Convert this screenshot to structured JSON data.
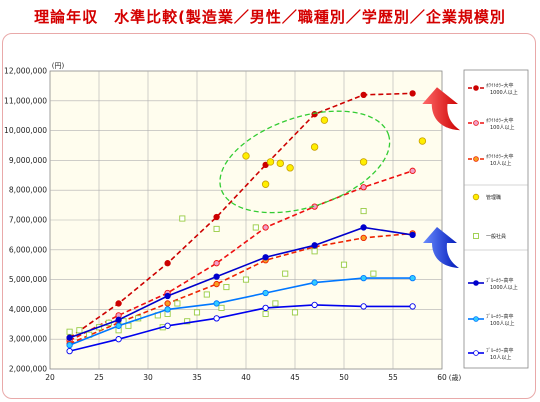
{
  "title": "理論年収　水準比較(製造業／男性／職種別／学歴別／企業規模別",
  "chart_data": {
    "type": "line",
    "y_unit": "(円)",
    "x_unit": "(歳)",
    "xlim": [
      20,
      60
    ],
    "ylim": [
      2000000,
      12000000
    ],
    "x_ticks": [
      "20",
      "25",
      "30",
      "35",
      "40",
      "45",
      "50",
      "55",
      "60"
    ],
    "y_ticks": [
      "2,000,000",
      "3,000,000",
      "4,000,000",
      "5,000,000",
      "6,000,000",
      "7,000,000",
      "8,000,000",
      "9,000,000",
      "10,000,000",
      "11,000,000",
      "12,000,000"
    ],
    "x_tick_values": [
      20,
      25,
      30,
      35,
      40,
      45,
      50,
      55,
      60
    ],
    "y_tick_values": [
      2000000,
      3000000,
      4000000,
      5000000,
      6000000,
      7000000,
      8000000,
      9000000,
      10000000,
      11000000,
      12000000
    ],
    "series": [
      {
        "name": "ﾎﾜｲﾄｶﾗｰ大卒 1000人以上",
        "color": "#cc0000",
        "marker_fill": "#cc0000",
        "dash": true,
        "x": [
          22,
          27,
          32,
          37,
          42,
          47,
          52,
          57
        ],
        "y": [
          3050000,
          4200000,
          5550000,
          7100000,
          8850000,
          10550000,
          11200000,
          11250000
        ]
      },
      {
        "name": "ﾎﾜｲﾄｶﾗｰ大卒 100人以上",
        "color": "#ee1111",
        "marker_fill": "#f0a0c8",
        "dash": true,
        "x": [
          22,
          27,
          32,
          37,
          42,
          47,
          52,
          57
        ],
        "y": [
          2950000,
          3800000,
          4550000,
          5550000,
          6750000,
          7450000,
          8100000,
          8650000
        ]
      },
      {
        "name": "ﾎﾜｲﾄｶﾗｰ大卒 10人以上",
        "color": "#ee2200",
        "marker_fill": "#f7a020",
        "dash": true,
        "x": [
          22,
          27,
          32,
          37,
          42,
          47,
          52,
          57
        ],
        "y": [
          2850000,
          3550000,
          4200000,
          4850000,
          5650000,
          6100000,
          6400000,
          6550000
        ]
      },
      {
        "name": "管理職",
        "marker": "circle",
        "marker_fill": "#ffee00",
        "marker_stroke": "#c8a000",
        "x": [
          40,
          42,
          42.5,
          43.5,
          44.5,
          47,
          48,
          52,
          58
        ],
        "y": [
          9150000,
          8200000,
          8950000,
          8900000,
          8750000,
          9450000,
          10350000,
          8950000,
          9650000
        ]
      },
      {
        "name": "一般社員",
        "marker": "square",
        "marker_fill": "#ffffff",
        "marker_stroke": "#99cc44",
        "x": [
          22,
          23,
          24,
          25,
          26,
          27,
          27.5,
          28,
          29,
          31,
          31.5,
          32,
          33,
          33.5,
          34,
          35,
          36,
          37,
          37.5,
          38,
          40,
          41,
          42,
          43,
          44,
          45,
          47,
          50,
          52,
          53
        ],
        "y": [
          3250000,
          3300000,
          3150000,
          3400000,
          3550000,
          3300000,
          3600000,
          3450000,
          3700000,
          3800000,
          3400000,
          3850000,
          4200000,
          7050000,
          3600000,
          3900000,
          4500000,
          6700000,
          4050000,
          4750000,
          5000000,
          6750000,
          3850000,
          4200000,
          5200000,
          3900000,
          5950000,
          5500000,
          7300000,
          5200000
        ]
      },
      {
        "name": "ﾌﾞﾙｰｶﾗｰ高卒 1000人以上",
        "color": "#0000cc",
        "marker_fill": "#0000cc",
        "dash": false,
        "x": [
          22,
          27,
          32,
          37,
          42,
          47,
          52,
          57
        ],
        "y": [
          3050000,
          3650000,
          4450000,
          5100000,
          5750000,
          6150000,
          6750000,
          6500000
        ]
      },
      {
        "name": "ﾌﾞﾙｰｶﾗｰ高卒 100人以上",
        "color": "#0077ff",
        "marker_fill": "#33ccff",
        "dash": false,
        "x": [
          22,
          27,
          32,
          37,
          42,
          47,
          52,
          57
        ],
        "y": [
          2800000,
          3450000,
          4000000,
          4200000,
          4550000,
          4900000,
          5050000,
          5050000
        ]
      },
      {
        "name": "ﾌﾞﾙｰｶﾗｰ高卒 10人以上",
        "color": "#0000ee",
        "marker_fill": "#ffffff",
        "dash": false,
        "x": [
          22,
          27,
          32,
          37,
          42,
          47,
          52,
          57
        ],
        "y": [
          2600000,
          3000000,
          3450000,
          3700000,
          4050000,
          4150000,
          4100000,
          4100000
        ]
      }
    ],
    "legend": [
      {
        "line1": "ﾎﾜｲﾄｶﾗｰ大卒",
        "line2": "1000人以上"
      },
      {
        "line1": "ﾎﾜｲﾄｶﾗｰ大卒",
        "line2": "100人以上"
      },
      {
        "line1": "ﾎﾜｲﾄｶﾗｰ大卒",
        "line2": "10人以上"
      },
      {
        "line1": "管理職",
        "line2": ""
      },
      {
        "line1": "一般社員",
        "line2": ""
      },
      {
        "line1": "ﾌﾞﾙｰｶﾗｰ高卒",
        "line2": "1000人以上"
      },
      {
        "line1": "ﾌﾞﾙｰｶﾗｰ高卒",
        "line2": "100人以上"
      },
      {
        "line1": "ﾌﾞﾙｰｶﾗｰ高卒",
        "line2": "10人以上"
      }
    ],
    "grid": true,
    "legend_position": "right",
    "plot_background": "#fffdee",
    "colors": {
      "title": "#d40000",
      "grid": "#b0b0b0",
      "highlight_ellipse": "#33cc33",
      "red_arrow": "#dd0000",
      "blue_arrow": "#0022cc"
    }
  }
}
